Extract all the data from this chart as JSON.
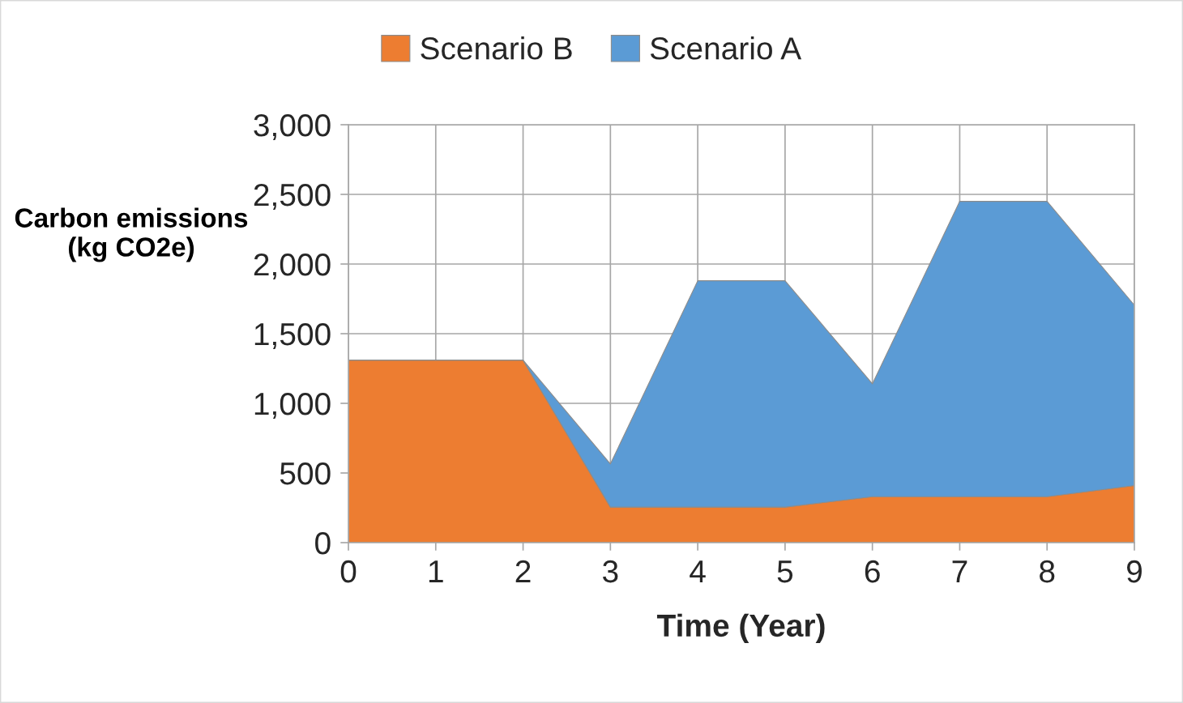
{
  "chart_data": {
    "type": "area",
    "stacked": true,
    "xlabel": "Time (Year)",
    "ylabel": "Carbon emissions\n(kg CO2e)",
    "x": [
      0,
      1,
      2,
      3,
      4,
      5,
      6,
      7,
      8,
      9
    ],
    "xlim": [
      0,
      9
    ],
    "xticks": [
      0,
      1,
      2,
      3,
      4,
      5,
      6,
      7,
      8,
      9
    ],
    "ylim": [
      0,
      3000
    ],
    "yticks": [
      0,
      500,
      {
        "value": 1000,
        "label": "1,000"
      },
      {
        "value": 1500,
        "label": "1,500"
      },
      {
        "value": 2000,
        "label": "2,000"
      },
      {
        "value": 2500,
        "label": "2,500"
      },
      {
        "value": 3000,
        "label": "3,000"
      }
    ],
    "series": [
      {
        "name": "Scenario B",
        "color": "#ed7d31",
        "values": [
          1310,
          1310,
          1310,
          255,
          255,
          255,
          330,
          330,
          330,
          410
        ]
      },
      {
        "name": "Scenario A",
        "color": "#5b9bd5",
        "values": [
          0,
          0,
          0,
          310,
          1625,
          1625,
          810,
          2120,
          2120,
          1295
        ]
      }
    ],
    "grid": true,
    "legend": "top"
  }
}
